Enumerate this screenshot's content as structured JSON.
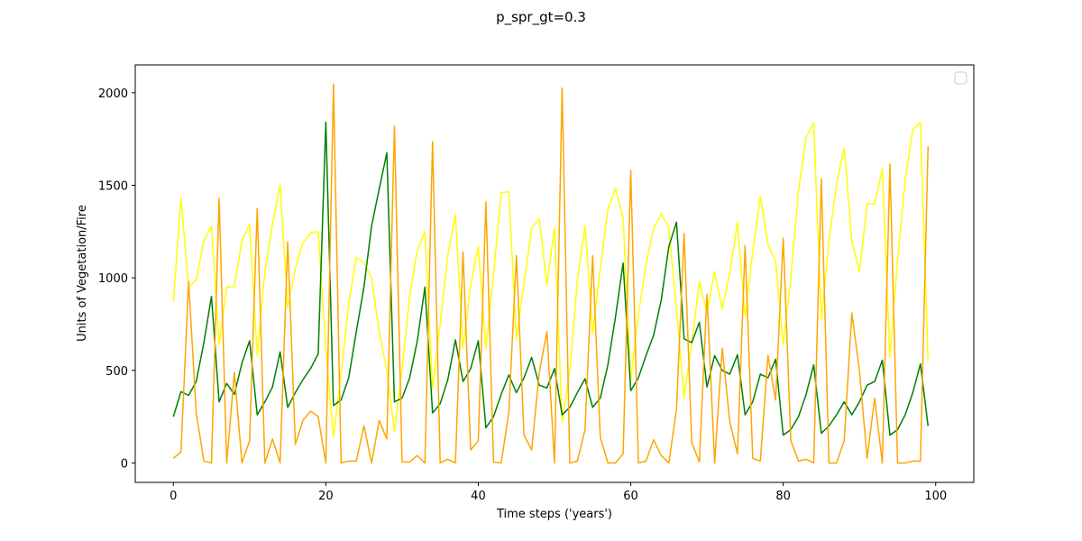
{
  "figure": {
    "suptitle": "p_spr_gt=0.3"
  },
  "chart_data": {
    "type": "line",
    "title": "p_spr_gt=0.3",
    "xlabel": "Time steps ('years')",
    "ylabel": "Units of Vegetation/Fire",
    "xlim": [
      -5,
      105
    ],
    "ylim": [
      -105,
      2150
    ],
    "xticks": [
      0,
      20,
      40,
      60,
      80,
      100
    ],
    "yticks": [
      0,
      500,
      1000,
      1500,
      2000
    ],
    "grid": false,
    "legend": {
      "placement": "upper right",
      "entries": []
    },
    "x": [
      0,
      1,
      2,
      3,
      4,
      5,
      6,
      7,
      8,
      9,
      10,
      11,
      12,
      13,
      14,
      15,
      16,
      17,
      18,
      19,
      20,
      21,
      22,
      23,
      24,
      25,
      26,
      27,
      28,
      29,
      30,
      31,
      32,
      33,
      34,
      35,
      36,
      37,
      38,
      39,
      40,
      41,
      42,
      43,
      44,
      45,
      46,
      47,
      48,
      49,
      50,
      51,
      52,
      53,
      54,
      55,
      56,
      57,
      58,
      59,
      60,
      61,
      62,
      63,
      64,
      65,
      66,
      67,
      68,
      69,
      70,
      71,
      72,
      73,
      74,
      75,
      76,
      77,
      78,
      79,
      80,
      81,
      82,
      83,
      84,
      85,
      86,
      87,
      88,
      89,
      90,
      91,
      92,
      93,
      94,
      95,
      96,
      97,
      98,
      99
    ],
    "series": [
      {
        "color": "#ffff00",
        "values": [
          870,
          1430,
          950,
          990,
          1200,
          1280,
          640,
          950,
          955,
          1200,
          1290,
          580,
          1030,
          1290,
          1500,
          840,
          1050,
          1190,
          1240,
          1250,
          620,
          140,
          480,
          860,
          1110,
          1080,
          1000,
          710,
          500,
          170,
          510,
          900,
          1150,
          1250,
          400,
          750,
          1120,
          1340,
          620,
          960,
          1170,
          620,
          1020,
          1460,
          1465,
          670,
          970,
          1270,
          1320,
          960,
          1275,
          220,
          500,
          990,
          1280,
          700,
          1050,
          1370,
          1485,
          1320,
          450,
          800,
          1070,
          1270,
          1345,
          1270,
          830,
          350,
          650,
          980,
          810,
          1035,
          830,
          1030,
          1300,
          790,
          1140,
          1440,
          1180,
          1090,
          640,
          1000,
          1470,
          1760,
          1835,
          770,
          1200,
          1510,
          1700,
          1200,
          1030,
          1400,
          1400,
          1590,
          570,
          1100,
          1530,
          1800,
          1840,
          550
        ]
      },
      {
        "color": "#008000",
        "values": [
          250,
          385,
          365,
          440,
          650,
          900,
          330,
          430,
          370,
          540,
          660,
          260,
          330,
          410,
          600,
          300,
          380,
          450,
          510,
          590,
          1840,
          310,
          340,
          460,
          710,
          950,
          1280,
          1480,
          1675,
          330,
          350,
          460,
          660,
          950,
          270,
          320,
          450,
          665,
          440,
          510,
          660,
          190,
          250,
          370,
          475,
          380,
          460,
          570,
          420,
          405,
          510,
          260,
          300,
          380,
          455,
          300,
          350,
          530,
          790,
          1080,
          390,
          460,
          580,
          690,
          880,
          1170,
          1300,
          670,
          650,
          760,
          410,
          580,
          500,
          480,
          585,
          260,
          330,
          480,
          460,
          560,
          150,
          180,
          250,
          370,
          530,
          160,
          200,
          260,
          330,
          260,
          330,
          420,
          440,
          555,
          150,
          180,
          260,
          380,
          535,
          200
        ]
      },
      {
        "color": "#ffa500",
        "values": [
          25,
          60,
          980,
          270,
          10,
          0,
          1430,
          0,
          490,
          0,
          120,
          1375,
          0,
          130,
          0,
          1195,
          100,
          230,
          280,
          250,
          0,
          2045,
          0,
          10,
          10,
          200,
          0,
          230,
          130,
          1820,
          5,
          5,
          40,
          0,
          1735,
          0,
          20,
          0,
          1140,
          70,
          120,
          1410,
          5,
          0,
          270,
          1120,
          150,
          70,
          490,
          710,
          0,
          2025,
          0,
          10,
          180,
          1120,
          140,
          0,
          0,
          50,
          1580,
          0,
          10,
          125,
          40,
          0,
          290,
          1240,
          110,
          5,
          910,
          0,
          620,
          220,
          50,
          1175,
          25,
          10,
          580,
          340,
          1215,
          120,
          10,
          20,
          0,
          1535,
          0,
          0,
          120,
          810,
          500,
          25,
          350,
          0,
          1615,
          0,
          0,
          10,
          10,
          1710
        ]
      }
    ]
  }
}
